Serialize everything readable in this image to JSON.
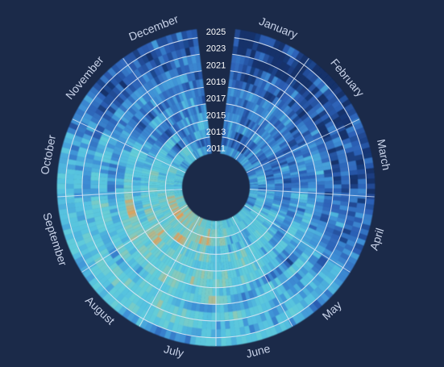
{
  "chart_data": {
    "type": "heatmap",
    "layout": "radial",
    "title": "",
    "angular_axis": {
      "label": "",
      "categories": [
        "January",
        "February",
        "March",
        "April",
        "May",
        "June",
        "July",
        "August",
        "September",
        "October",
        "November",
        "December"
      ]
    },
    "radial_axis": {
      "label": "",
      "tick_labels": [
        "2025",
        "2023",
        "2021",
        "2019",
        "2017",
        "2015",
        "2013",
        "2011"
      ],
      "range": [
        2011,
        2025
      ],
      "ring_groups": [
        [
          2011,
          2012
        ],
        [
          2013,
          2014
        ],
        [
          2015,
          2016
        ],
        [
          2017,
          2018
        ],
        [
          2019,
          2020
        ],
        [
          2021,
          2022
        ],
        [
          2023,
          2024
        ],
        [
          2025
        ]
      ]
    },
    "value_scale": {
      "range": [
        0,
        1
      ],
      "colors": [
        "#12306a",
        "#2c5fb5",
        "#3e8fd6",
        "#55c1e0",
        "#62cdd9",
        "#8fc9b4",
        "#e0a05a"
      ],
      "legend": "none"
    },
    "monthly_means": [
      0.22,
      0.22,
      0.26,
      0.33,
      0.47,
      0.58,
      0.65,
      0.68,
      0.63,
      0.47,
      0.33,
      0.25
    ],
    "year_trend": [
      0.55,
      0.56,
      0.55,
      0.53,
      0.52,
      0.5,
      0.49,
      0.47,
      0.45,
      0.43,
      0.42,
      0.4,
      0.38,
      0.37,
      0.33
    ],
    "cell_resolution": "daily",
    "grid": true,
    "gridlines_monthly": true
  }
}
